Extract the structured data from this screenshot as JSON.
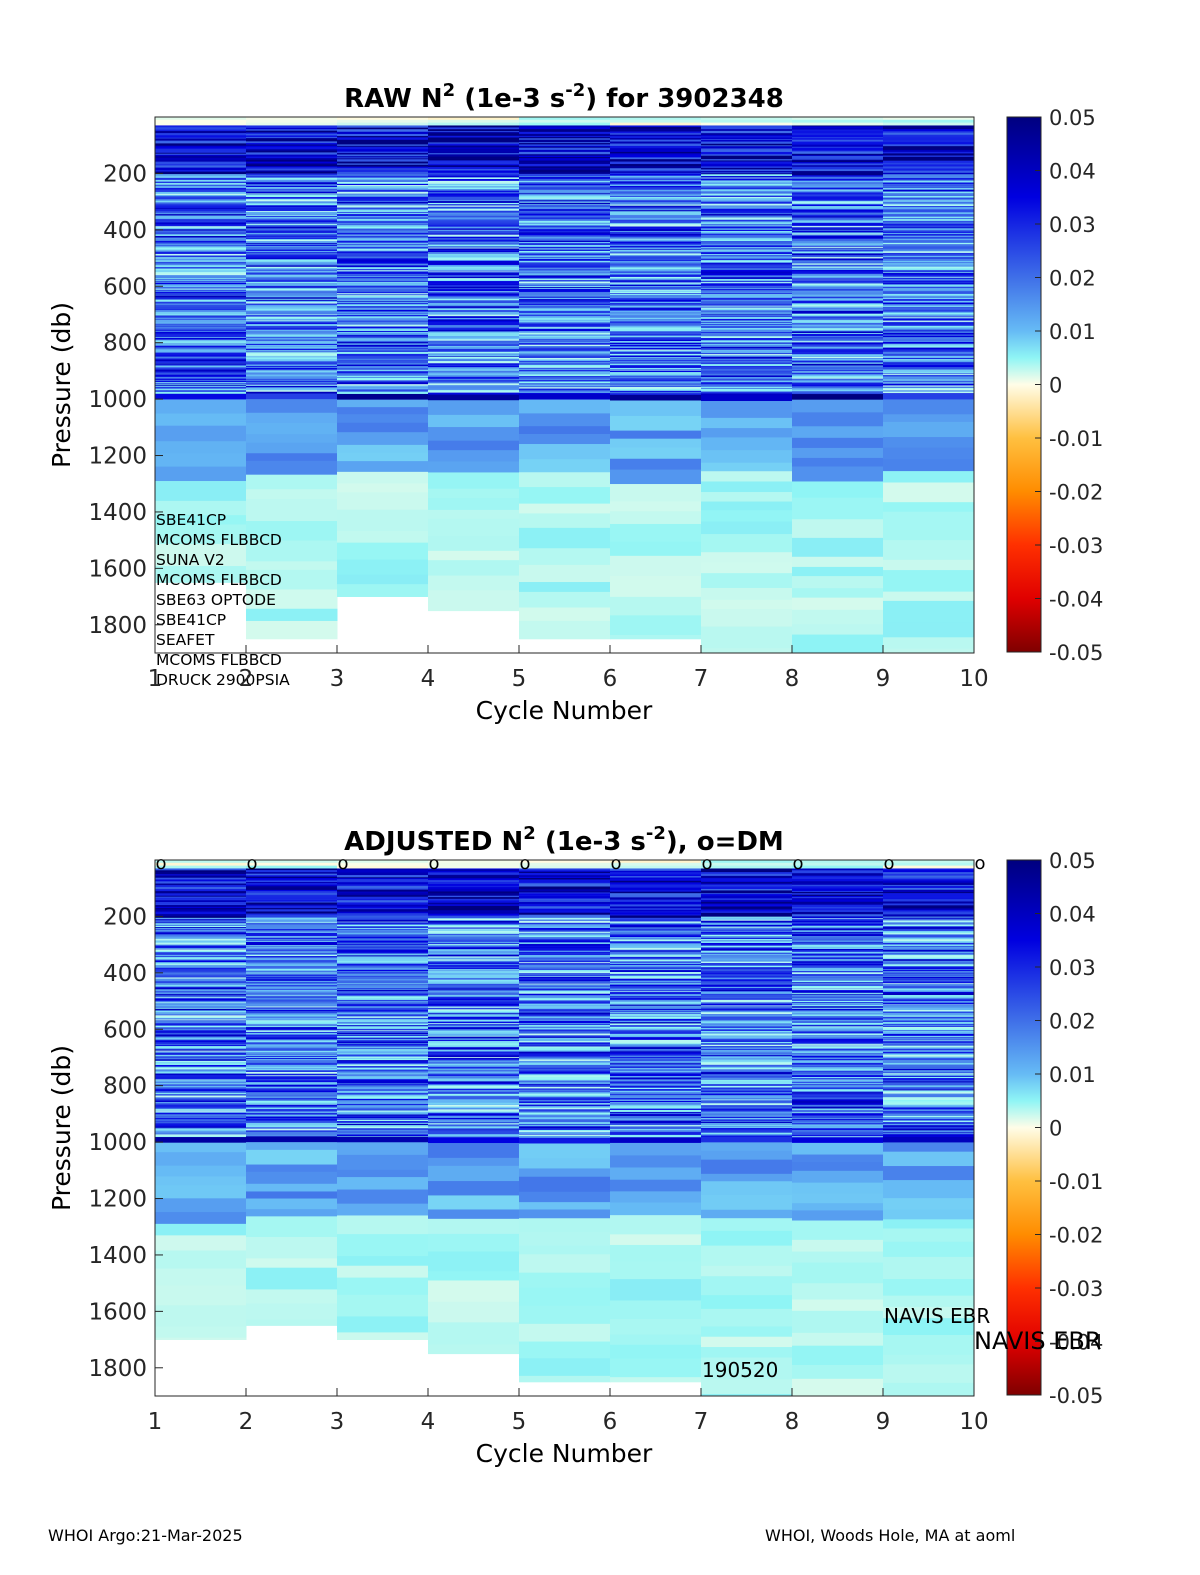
{
  "float_id": "3902348",
  "footer": {
    "left": "WHOI Argo:21-Mar-2025",
    "right": "WHOI, Woods Hole, MA at aoml"
  },
  "colors": {
    "scale_positive_high": "#00007f",
    "scale_mid_blue": "#3f8fff",
    "scale_zero": "#fffde8",
    "scale_negative_low": "#7f0000",
    "background": "#ffffff"
  },
  "chart_data": [
    {
      "type": "heatmap",
      "title_parts": {
        "pre": "RAW N",
        "sup1": "2",
        "mid": " (1e-3 s",
        "sup2": "-2",
        "post": ") for 3902348"
      },
      "xlabel": "Cycle Number",
      "ylabel": "Pressure (db)",
      "x": [
        1,
        2,
        3,
        4,
        5,
        6,
        7,
        8,
        9,
        10
      ],
      "xlim": [
        1,
        10
      ],
      "ylim": [
        0,
        1900
      ],
      "y_reversed": true,
      "yticks": [
        200,
        400,
        600,
        800,
        1000,
        1200,
        1400,
        1600,
        1800
      ],
      "colorbar": {
        "range": [
          -0.05,
          0.05
        ],
        "ticks": [
          "0.05",
          "0.04",
          "0.03",
          "0.02",
          "0.01",
          "0",
          "-0.01",
          "-0.02",
          "-0.03",
          "-0.04",
          "-0.05"
        ]
      },
      "max_pressure_by_cycle": [
        1650,
        1850,
        1700,
        1750,
        1850,
        1850,
        1900,
        1900,
        1900,
        1900
      ],
      "sensor_labels": [
        "SBE41CP",
        "MCOMS FLBBCD",
        "SUNA V2",
        "MCOMS FLBBCD",
        "SBE63 OPTODE",
        "SBE41CP",
        "SEAFET",
        "MCOMS FLBBCD",
        "DRUCK 2900PSIA"
      ],
      "annotations": []
    },
    {
      "type": "heatmap",
      "title_parts": {
        "pre": "ADJUSTED N",
        "sup1": "2",
        "mid": " (1e-3 s",
        "sup2": "-2",
        "post": "), o=DM"
      },
      "xlabel": "Cycle Number",
      "ylabel": "Pressure (db)",
      "x": [
        1,
        2,
        3,
        4,
        5,
        6,
        7,
        8,
        9,
        10
      ],
      "xlim": [
        1,
        10
      ],
      "ylim": [
        0,
        1900
      ],
      "y_reversed": true,
      "yticks": [
        200,
        400,
        600,
        800,
        1000,
        1200,
        1400,
        1600,
        1800
      ],
      "colorbar": {
        "range": [
          -0.05,
          0.05
        ],
        "ticks": [
          "0.05",
          "0.04",
          "0.03",
          "0.02",
          "0.01",
          "0",
          "-0.01",
          "-0.02",
          "-0.03",
          "-0.04",
          "-0.05"
        ]
      },
      "max_pressure_by_cycle": [
        1700,
        1650,
        1700,
        1750,
        1850,
        1850,
        1900,
        1900,
        1900,
        1900
      ],
      "dm_marker": "o",
      "dm_cycles": [
        1,
        2,
        3,
        4,
        5,
        6,
        7,
        8,
        9,
        10
      ],
      "annotations": [
        "NAVIS EBR",
        "NAVIS EBR",
        "190520"
      ]
    }
  ]
}
